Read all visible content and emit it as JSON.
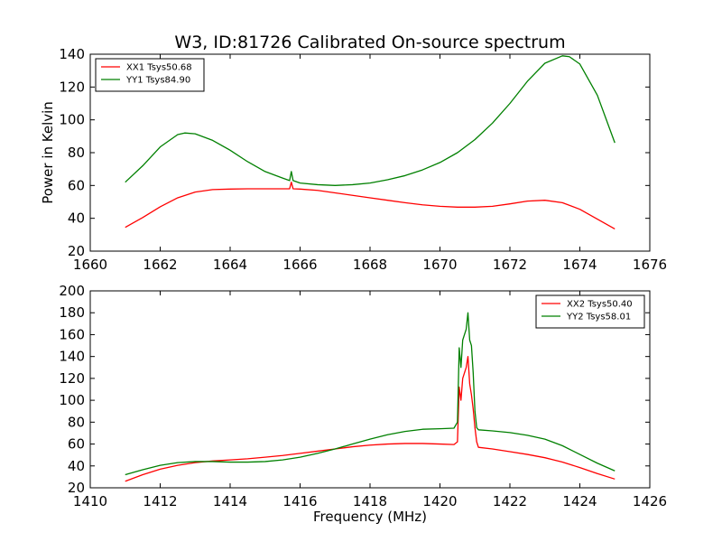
{
  "figure": {
    "title": "W3, ID:81726 Calibrated On-source spectrum",
    "ylabel": "Power in Kelvin",
    "xlabel": "Frequency (MHz)"
  },
  "colors": {
    "red": "#ff0000",
    "green": "#008000"
  },
  "chart_data": [
    {
      "type": "line",
      "title": "W3, ID:81726 Calibrated On-source spectrum",
      "xlabel": "",
      "ylabel": "Power in Kelvin",
      "xlim": [
        1660,
        1676
      ],
      "ylim": [
        20,
        140
      ],
      "xticks": [
        "1660",
        "1662",
        "1664",
        "1666",
        "1668",
        "1670",
        "1672",
        "1674",
        "1676"
      ],
      "yticks": [
        "20",
        "40",
        "60",
        "80",
        "100",
        "120",
        "140"
      ],
      "legend": "top-left",
      "grid": false,
      "series": [
        {
          "name": "XX1 Tsys50.68",
          "color": "#ff0000",
          "x": [
            1661.0,
            1661.5,
            1662.0,
            1662.5,
            1663.0,
            1663.5,
            1664.0,
            1664.5,
            1665.0,
            1665.5,
            1665.7,
            1665.75,
            1665.8,
            1666.0,
            1666.5,
            1667.0,
            1667.5,
            1668.0,
            1668.5,
            1669.0,
            1669.5,
            1670.0,
            1670.5,
            1671.0,
            1671.5,
            1672.0,
            1672.5,
            1673.0,
            1673.5,
            1674.0,
            1674.5,
            1675.0
          ],
          "y": [
            34.5,
            40.5,
            47.0,
            52.5,
            56.0,
            57.5,
            57.8,
            58.0,
            58.0,
            58.0,
            58.0,
            62.0,
            58.0,
            57.8,
            57.0,
            55.5,
            54.0,
            52.5,
            51.0,
            49.5,
            48.2,
            47.3,
            46.8,
            46.8,
            47.3,
            48.8,
            50.5,
            51.0,
            49.5,
            45.5,
            39.5,
            33.5
          ]
        },
        {
          "name": "YY1 Tsys84.90",
          "color": "#008000",
          "x": [
            1661.0,
            1661.5,
            1662.0,
            1662.5,
            1662.7,
            1663.0,
            1663.5,
            1664.0,
            1664.5,
            1665.0,
            1665.5,
            1665.7,
            1665.75,
            1665.8,
            1666.0,
            1666.5,
            1667.0,
            1667.5,
            1668.0,
            1668.5,
            1669.0,
            1669.5,
            1670.0,
            1670.5,
            1671.0,
            1671.5,
            1672.0,
            1672.5,
            1673.0,
            1673.5,
            1673.7,
            1674.0,
            1674.5,
            1675.0
          ],
          "y": [
            62.0,
            72.0,
            83.5,
            91.0,
            92.0,
            91.5,
            87.5,
            81.5,
            74.5,
            68.5,
            64.5,
            63.0,
            68.5,
            63.0,
            61.5,
            60.5,
            60.0,
            60.5,
            61.5,
            63.5,
            66.0,
            69.5,
            74.0,
            80.0,
            88.0,
            98.0,
            110.0,
            123.5,
            134.5,
            139.0,
            138.5,
            134.0,
            115.0,
            86.0
          ]
        }
      ]
    },
    {
      "type": "line",
      "title": "",
      "xlabel": "Frequency (MHz)",
      "ylabel": "",
      "xlim": [
        1410,
        1426
      ],
      "ylim": [
        20,
        200
      ],
      "xticks": [
        "1410",
        "1412",
        "1414",
        "1416",
        "1418",
        "1420",
        "1422",
        "1424",
        "1426"
      ],
      "yticks": [
        "20",
        "40",
        "60",
        "80",
        "100",
        "120",
        "140",
        "160",
        "180",
        "200"
      ],
      "legend": "top-right",
      "grid": false,
      "series": [
        {
          "name": "XX2 Tsys50.40",
          "color": "#ff0000",
          "x": [
            1411.0,
            1411.5,
            1412.0,
            1412.5,
            1413.0,
            1413.5,
            1414.0,
            1414.5,
            1415.0,
            1415.5,
            1416.0,
            1416.5,
            1417.0,
            1417.5,
            1418.0,
            1418.5,
            1419.0,
            1419.5,
            1420.0,
            1420.4,
            1420.5,
            1420.55,
            1420.6,
            1420.65,
            1420.7,
            1420.75,
            1420.8,
            1420.85,
            1420.9,
            1420.95,
            1421.0,
            1421.05,
            1421.1,
            1421.5,
            1422.0,
            1422.5,
            1423.0,
            1423.5,
            1424.0,
            1424.5,
            1425.0
          ],
          "y": [
            26.0,
            32.0,
            37.0,
            40.5,
            43.0,
            44.5,
            45.5,
            46.5,
            48.0,
            49.5,
            51.5,
            53.5,
            55.5,
            57.5,
            59.0,
            60.0,
            60.5,
            60.5,
            60.0,
            59.5,
            62.0,
            112.0,
            100.0,
            120.0,
            125.0,
            130.0,
            140.0,
            115.0,
            105.0,
            92.0,
            75.0,
            62.0,
            57.0,
            55.5,
            53.0,
            50.5,
            47.5,
            43.5,
            38.5,
            33.0,
            28.0
          ]
        },
        {
          "name": "YY2 Tsys58.01",
          "color": "#008000",
          "x": [
            1411.0,
            1411.5,
            1412.0,
            1412.5,
            1413.0,
            1413.5,
            1414.0,
            1414.5,
            1415.0,
            1415.5,
            1416.0,
            1416.5,
            1417.0,
            1417.5,
            1418.0,
            1418.5,
            1419.0,
            1419.5,
            1420.0,
            1420.4,
            1420.5,
            1420.55,
            1420.6,
            1420.65,
            1420.7,
            1420.75,
            1420.8,
            1420.85,
            1420.9,
            1420.95,
            1421.0,
            1421.05,
            1421.1,
            1421.5,
            1422.0,
            1422.5,
            1423.0,
            1423.5,
            1424.0,
            1424.5,
            1425.0
          ],
          "y": [
            32.0,
            36.5,
            40.5,
            43.0,
            44.0,
            44.0,
            43.5,
            43.5,
            44.0,
            45.5,
            48.0,
            51.5,
            55.5,
            60.0,
            64.5,
            68.5,
            71.5,
            73.5,
            74.0,
            74.5,
            80.0,
            148.0,
            130.0,
            155.0,
            160.0,
            165.0,
            180.0,
            155.0,
            150.0,
            125.0,
            90.0,
            75.0,
            73.0,
            72.0,
            70.5,
            68.0,
            64.5,
            58.5,
            50.5,
            42.5,
            35.5
          ]
        }
      ]
    }
  ]
}
